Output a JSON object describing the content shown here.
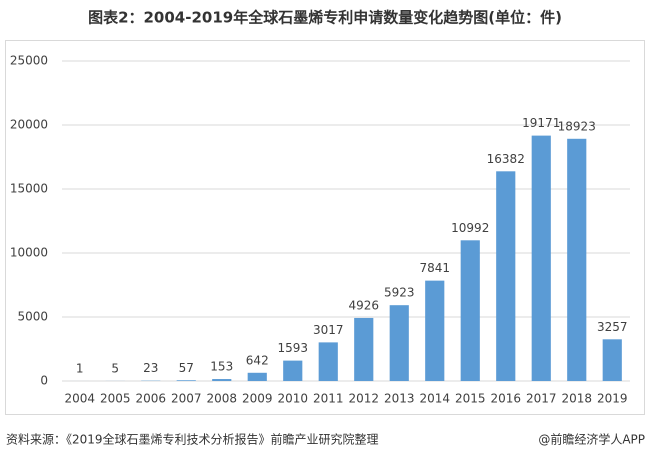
{
  "chart_data": {
    "type": "bar",
    "title": "图表2：2004-2019年全球石墨烯专利申请数量变化趋势图(单位：件)",
    "categories": [
      "2004",
      "2005",
      "2006",
      "2007",
      "2008",
      "2009",
      "2010",
      "2011",
      "2012",
      "2013",
      "2014",
      "2015",
      "2016",
      "2017",
      "2018",
      "2019"
    ],
    "values": [
      1,
      5,
      23,
      57,
      153,
      642,
      1593,
      3017,
      4926,
      5923,
      7841,
      10992,
      16382,
      19171,
      18923,
      3257
    ],
    "color": "#5b9bd5",
    "ylim": [
      0,
      25000
    ],
    "yticks": [
      0,
      5000,
      10000,
      15000,
      20000,
      25000
    ],
    "grid": true,
    "source": "资料来源：《2019全球石墨烯专利技术分析报告》前瞻产业研究院整理",
    "credit": "@前瞻经济学人APP"
  }
}
